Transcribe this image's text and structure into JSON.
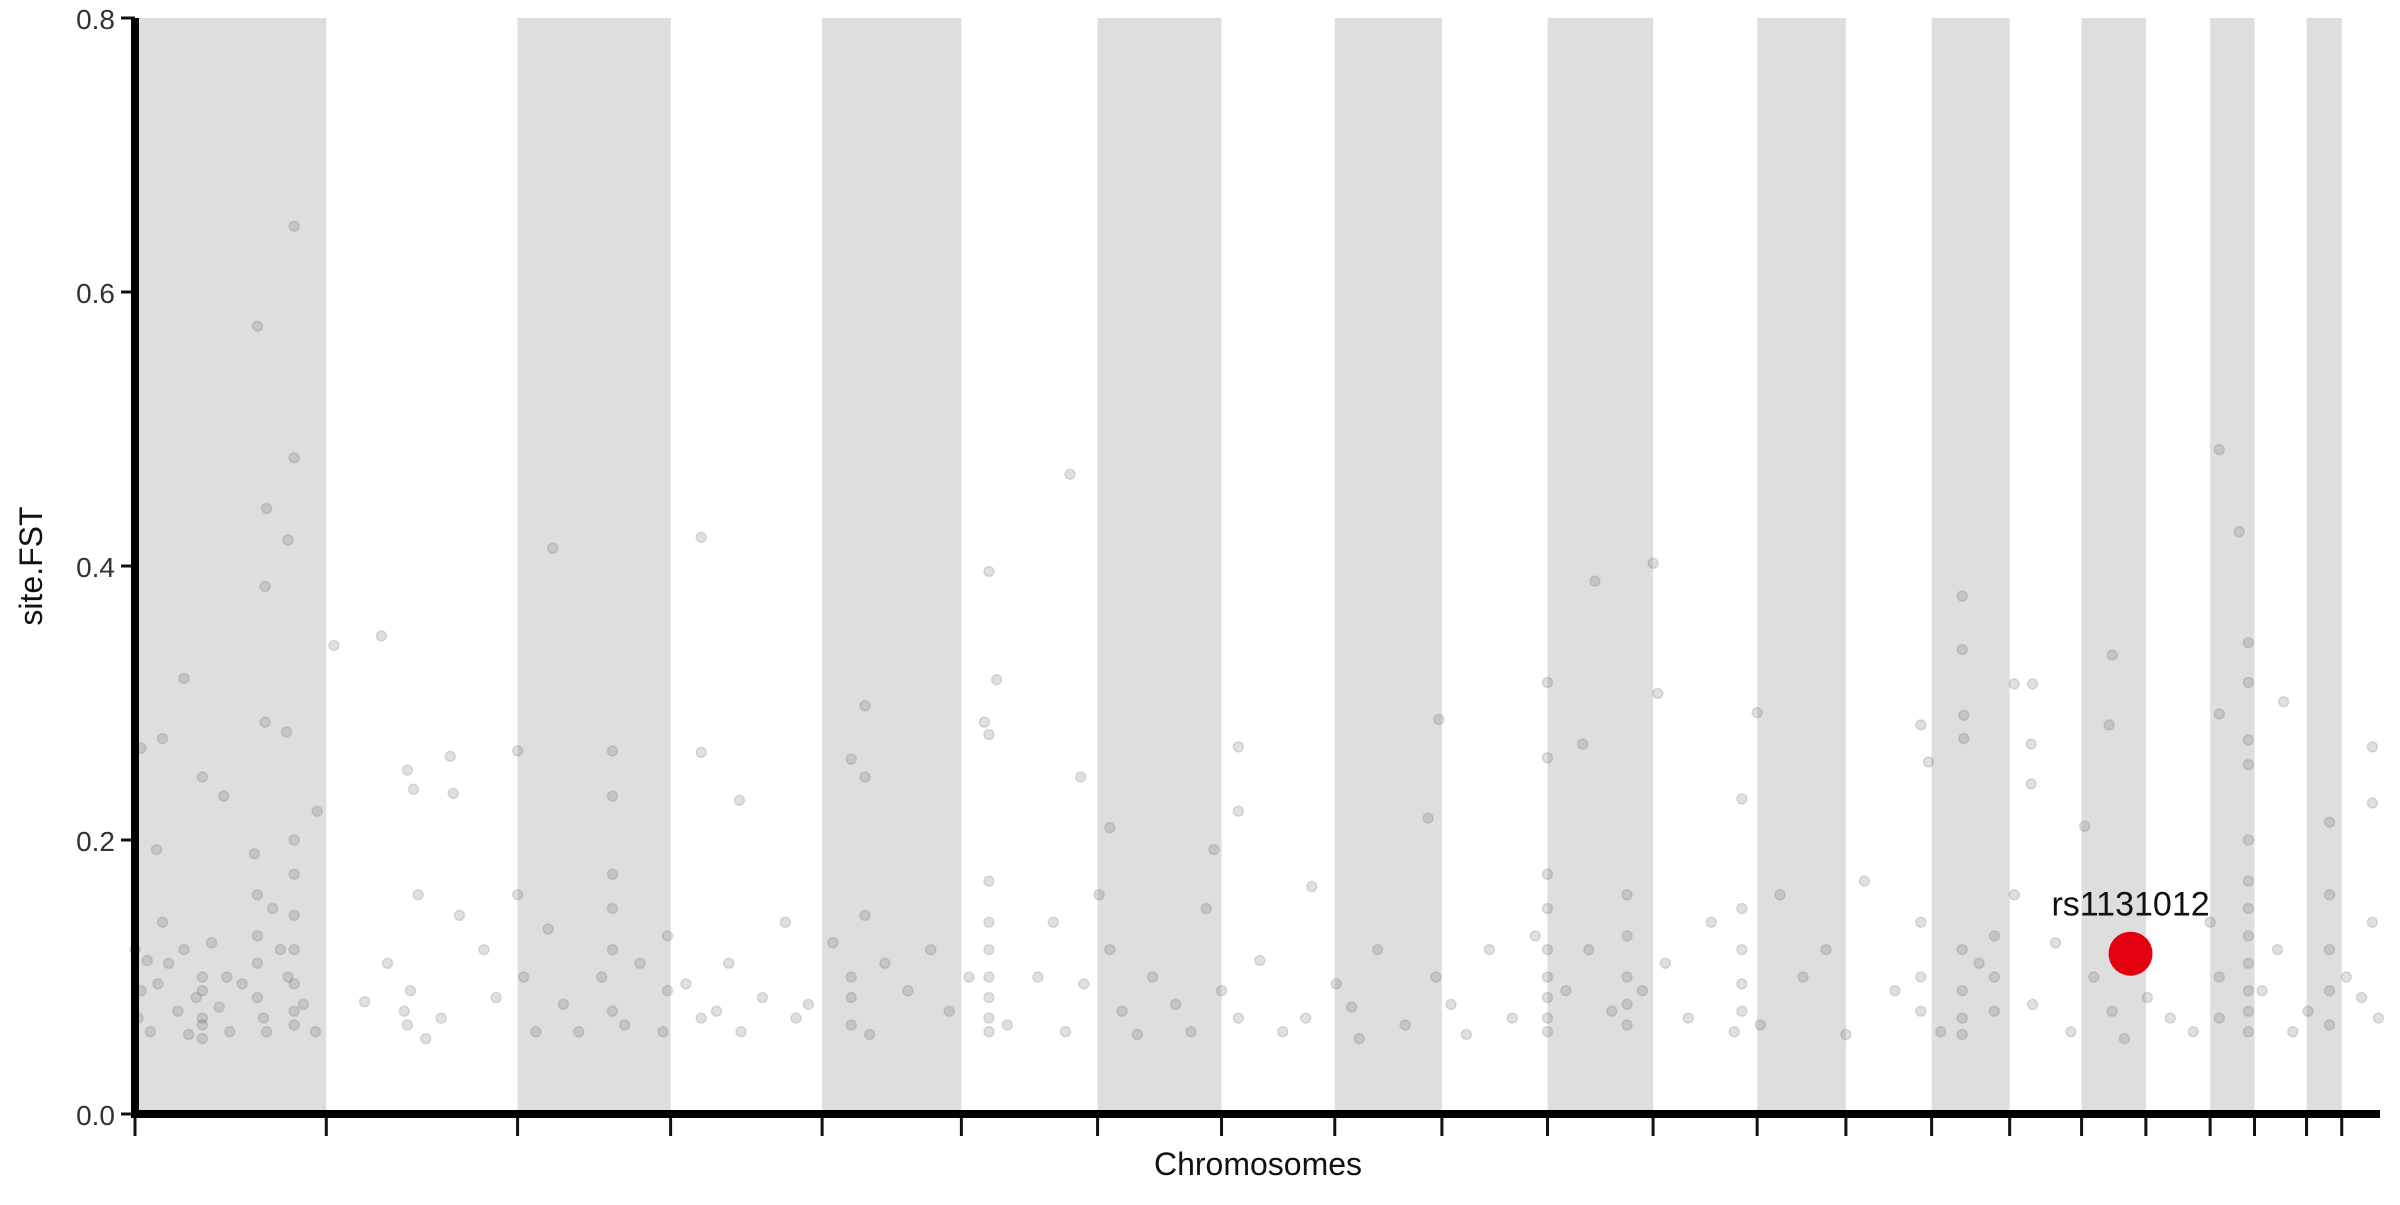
{
  "chart_data": {
    "type": "scatter",
    "x_label": "Chromosomes",
    "y_label": "site.FST",
    "xlim": [
      0,
      1467
    ],
    "ylim": [
      0,
      0.8
    ],
    "xticks": [
      0,
      125,
      250,
      350,
      449,
      540,
      629,
      710,
      784,
      854,
      923,
      992,
      1060,
      1118,
      1174,
      1225,
      1272,
      1314,
      1356,
      1385,
      1419,
      1442
    ],
    "yticks": [
      {
        "value": 0,
        "label": "0.0"
      },
      0.2,
      0.4,
      0.6,
      0.8
    ],
    "band_color": "#dedede",
    "color": "#555555",
    "opacity": 0.18,
    "x": [
      0,
      2,
      4,
      8,
      10,
      15,
      18,
      22,
      28,
      32,
      35,
      40,
      44,
      44,
      44,
      44,
      44,
      50,
      55,
      60,
      62,
      70,
      78,
      80,
      80,
      80,
      80,
      84,
      86,
      90,
      95,
      100,
      104,
      104,
      104,
      104,
      104,
      104,
      104,
      110,
      118,
      150,
      165,
      176,
      178,
      180,
      185,
      190,
      200,
      212,
      228,
      236,
      250,
      254,
      262,
      270,
      280,
      290,
      305,
      312,
      312,
      312,
      312,
      320,
      330,
      345,
      348,
      348,
      360,
      370,
      380,
      388,
      396,
      410,
      425,
      432,
      440,
      456,
      468,
      468,
      468,
      477,
      480,
      490,
      505,
      520,
      532,
      545,
      558,
      558,
      558,
      558,
      558,
      558,
      558,
      570,
      590,
      600,
      608,
      620,
      630,
      637,
      645,
      655,
      665,
      680,
      690,
      700,
      710,
      721,
      735,
      750,
      765,
      785,
      795,
      800,
      812,
      830,
      850,
      860,
      870,
      885,
      900,
      915,
      923,
      923,
      923,
      923,
      923,
      923,
      923,
      935,
      950,
      965,
      975,
      975,
      975,
      975,
      975,
      985,
      1000,
      1015,
      1030,
      1045,
      1050,
      1050,
      1050,
      1050,
      1062,
      1075,
      1090,
      1105,
      1118,
      1130,
      1150,
      1167,
      1167,
      1167,
      1180,
      1194,
      1194,
      1194,
      1194,
      1205,
      1215,
      1215,
      1215,
      1228,
      1240,
      1255,
      1265,
      1280,
      1292,
      1300,
      1315,
      1330,
      1345,
      1356,
      1362,
      1362,
      1381,
      1381,
      1381,
      1381,
      1381,
      1381,
      1381,
      1381,
      1390,
      1400,
      1410,
      1420,
      1434,
      1434,
      1434,
      1434,
      1445,
      1455,
      1462,
      1466,
      80,
      104,
      104,
      86,
      100,
      85,
      85,
      99,
      32,
      18,
      4,
      14,
      44,
      58,
      119,
      130,
      161,
      178,
      182,
      206,
      208,
      250,
      273,
      312,
      312,
      370,
      370,
      395,
      468,
      477,
      477,
      558,
      563,
      555,
      558,
      611,
      618,
      637,
      705,
      721,
      721,
      769,
      852,
      845,
      923,
      923,
      946,
      954,
      992,
      995,
      1050,
      1060,
      1167,
      1172,
      1194,
      1194,
      1195,
      1195,
      1228,
      1240,
      1239,
      1239,
      1292,
      1290,
      1274,
      1362,
      1375,
      1381,
      1381,
      1381,
      1381,
      1362,
      1404,
      1462,
      1462,
      1434
    ],
    "values": [
      0.12,
      0.07,
      0.09,
      0.112,
      0.06,
      0.095,
      0.14,
      0.11,
      0.075,
      0.12,
      0.058,
      0.085,
      0.07,
      0.09,
      0.1,
      0.065,
      0.055,
      0.125,
      0.078,
      0.1,
      0.06,
      0.095,
      0.19,
      0.16,
      0.13,
      0.11,
      0.085,
      0.07,
      0.06,
      0.15,
      0.12,
      0.1,
      0.2,
      0.175,
      0.145,
      0.12,
      0.095,
      0.075,
      0.065,
      0.08,
      0.06,
      0.082,
      0.11,
      0.075,
      0.065,
      0.09,
      0.16,
      0.055,
      0.07,
      0.145,
      0.12,
      0.085,
      0.16,
      0.1,
      0.06,
      0.135,
      0.08,
      0.06,
      0.1,
      0.175,
      0.15,
      0.12,
      0.075,
      0.065,
      0.11,
      0.06,
      0.13,
      0.09,
      0.095,
      0.07,
      0.075,
      0.11,
      0.06,
      0.085,
      0.14,
      0.07,
      0.08,
      0.125,
      0.1,
      0.085,
      0.065,
      0.145,
      0.058,
      0.11,
      0.09,
      0.12,
      0.075,
      0.1,
      0.17,
      0.14,
      0.12,
      0.1,
      0.085,
      0.07,
      0.06,
      0.065,
      0.1,
      0.14,
      0.06,
      0.095,
      0.16,
      0.12,
      0.075,
      0.058,
      0.1,
      0.08,
      0.06,
      0.15,
      0.09,
      0.07,
      0.112,
      0.06,
      0.07,
      0.095,
      0.078,
      0.055,
      0.12,
      0.065,
      0.1,
      0.08,
      0.058,
      0.12,
      0.07,
      0.13,
      0.175,
      0.15,
      0.12,
      0.1,
      0.085,
      0.07,
      0.06,
      0.09,
      0.12,
      0.075,
      0.16,
      0.13,
      0.1,
      0.08,
      0.065,
      0.09,
      0.11,
      0.07,
      0.14,
      0.06,
      0.15,
      0.12,
      0.095,
      0.075,
      0.065,
      0.16,
      0.1,
      0.12,
      0.058,
      0.17,
      0.09,
      0.14,
      0.1,
      0.075,
      0.06,
      0.12,
      0.09,
      0.07,
      0.058,
      0.11,
      0.13,
      0.1,
      0.075,
      0.16,
      0.08,
      0.125,
      0.06,
      0.1,
      0.075,
      0.055,
      0.085,
      0.07,
      0.06,
      0.14,
      0.1,
      0.07,
      0.2,
      0.17,
      0.15,
      0.13,
      0.11,
      0.09,
      0.075,
      0.06,
      0.09,
      0.12,
      0.06,
      0.075,
      0.16,
      0.12,
      0.09,
      0.065,
      0.1,
      0.085,
      0.14,
      0.07,
      0.575,
      0.648,
      0.479,
      0.442,
      0.419,
      0.385,
      0.286,
      0.279,
      0.318,
      0.274,
      0.267,
      0.193,
      0.246,
      0.232,
      0.221,
      0.342,
      0.349,
      0.251,
      0.237,
      0.261,
      0.234,
      0.265,
      0.413,
      0.265,
      0.232,
      0.421,
      0.264,
      0.229,
      0.259,
      0.298,
      0.246,
      0.396,
      0.317,
      0.286,
      0.277,
      0.467,
      0.246,
      0.209,
      0.193,
      0.268,
      0.221,
      0.166,
      0.288,
      0.216,
      0.315,
      0.26,
      0.27,
      0.389,
      0.402,
      0.307,
      0.23,
      0.293,
      0.284,
      0.257,
      0.378,
      0.339,
      0.291,
      0.274,
      0.314,
      0.314,
      0.27,
      0.241,
      0.335,
      0.284,
      0.21,
      0.485,
      0.425,
      0.344,
      0.315,
      0.273,
      0.255,
      0.292,
      0.301,
      0.268,
      0.227,
      0.213
    ],
    "highlight": {
      "label": "rs1131012",
      "x": 1304,
      "y": 0.117,
      "color": "#e3000f"
    }
  }
}
